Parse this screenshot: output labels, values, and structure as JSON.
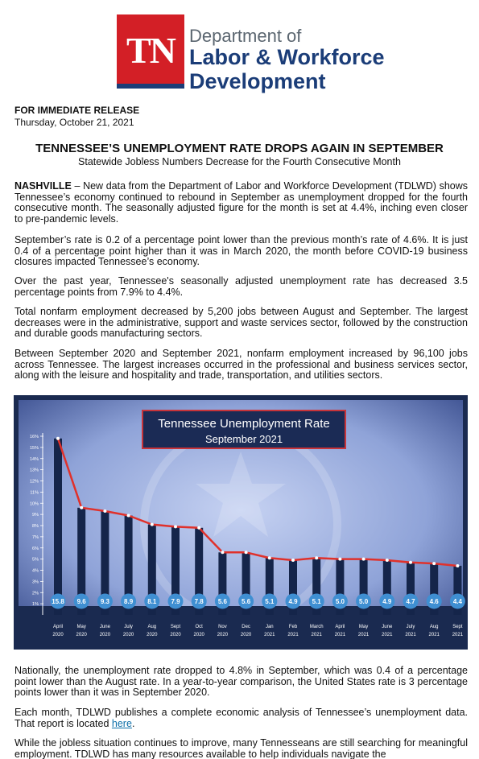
{
  "logo": {
    "badge": "TN",
    "line1": "Department of",
    "line2": "Labor & Workforce",
    "line3": "Development"
  },
  "release": {
    "label": "FOR IMMEDIATE RELEASE",
    "date": "Thursday, October 21, 2021"
  },
  "headline": "TENNESSEE’S UNEMPLOYMENT RATE DROPS AGAIN IN SEPTEMBER",
  "subheadline": "Statewide Jobless Numbers Decrease for the Fourth Consecutive Month",
  "body": {
    "p1_lead": "NASHVILLE",
    "p1": " – New data from the Department of Labor and Workforce Development (TDLWD) shows Tennessee’s economy continued to rebound in September as unemployment dropped for the fourth consecutive month. The seasonally adjusted figure for the month is set at 4.4%, inching even closer to pre-pandemic levels.",
    "p2": "September’s rate is 0.2 of a percentage point lower than the previous month’s rate of 4.6%. It is just 0.4 of a percentage point higher than it was in March 2020, the month before COVID-19 business closures impacted Tennessee’s economy.",
    "p3": "Over the past year, Tennessee's seasonally adjusted unemployment rate has decreased 3.5 percentage points from 7.9% to 4.4%.",
    "p4": "Total nonfarm employment decreased by 5,200 jobs between August and September. The largest decreases were in the administrative, support and waste services sector, followed by the construction and durable goods manufacturing sectors.",
    "p5": "Between September 2020 and September 2021, nonfarm employment increased by 96,100 jobs across Tennessee. The largest increases occurred in the professional and business services sector, along with the leisure and hospitality and trade, transportation, and utilities sectors.",
    "p6": "Nationally, the unemployment rate dropped to 4.8% in September, which was 0.4 of a percentage point lower than the August rate. In a year-to-year comparison, the United States rate is 3 percentage points lower than it was in September 2020.",
    "p7_before": "Each month, TDLWD publishes a complete economic analysis of Tennessee’s unemployment data. That report is located ",
    "p7_link": "here",
    "p7_after": ".",
    "p8": "While the jobless situation continues to improve, many Tennesseans are still searching for meaningful employment. TDLWD has many resources available to help individuals navigate the"
  },
  "chart_data": {
    "type": "bar",
    "title": "Tennessee Unemployment Rate",
    "subtitle": "September 2021",
    "months": [
      "April",
      "May",
      "June",
      "July",
      "Aug",
      "Sept",
      "Oct",
      "Nov",
      "Dec",
      "Jan",
      "Feb",
      "March",
      "April",
      "May",
      "June",
      "July",
      "Aug",
      "Sept"
    ],
    "years": [
      "2020",
      "2020",
      "2020",
      "2020",
      "2020",
      "2020",
      "2020",
      "2020",
      "2020",
      "2021",
      "2021",
      "2021",
      "2021",
      "2021",
      "2021",
      "2021",
      "2021",
      "2021"
    ],
    "values": [
      15.8,
      9.6,
      9.3,
      8.9,
      8.1,
      7.9,
      7.8,
      5.6,
      5.6,
      5.1,
      4.9,
      5.1,
      5.0,
      5.0,
      4.9,
      4.7,
      4.6,
      4.4
    ],
    "value_labels": [
      "15.8",
      "9.6",
      "9.3",
      "8.9",
      "8.1",
      "7.9",
      "7.8",
      "5.6",
      "5.6",
      "5.1",
      "4.9",
      "5.1",
      "5.0",
      "5.0",
      "4.9",
      "4.7",
      "4.6",
      "4.4"
    ],
    "y_ticks": [
      "1%",
      "2%",
      "3%",
      "4%",
      "5%",
      "6%",
      "7%",
      "8%",
      "9%",
      "10%",
      "11%",
      "12%",
      "13%",
      "14%",
      "15%",
      "16%"
    ],
    "ylim": [
      0,
      16
    ],
    "colors": {
      "bar": "#15254a",
      "line": "#e0312b",
      "label_circle": "#3f8fd2",
      "title_box": "#1b2b55",
      "title_border": "#c8343a",
      "frame": "#1a2a50",
      "background": "#8fa3d8"
    }
  }
}
